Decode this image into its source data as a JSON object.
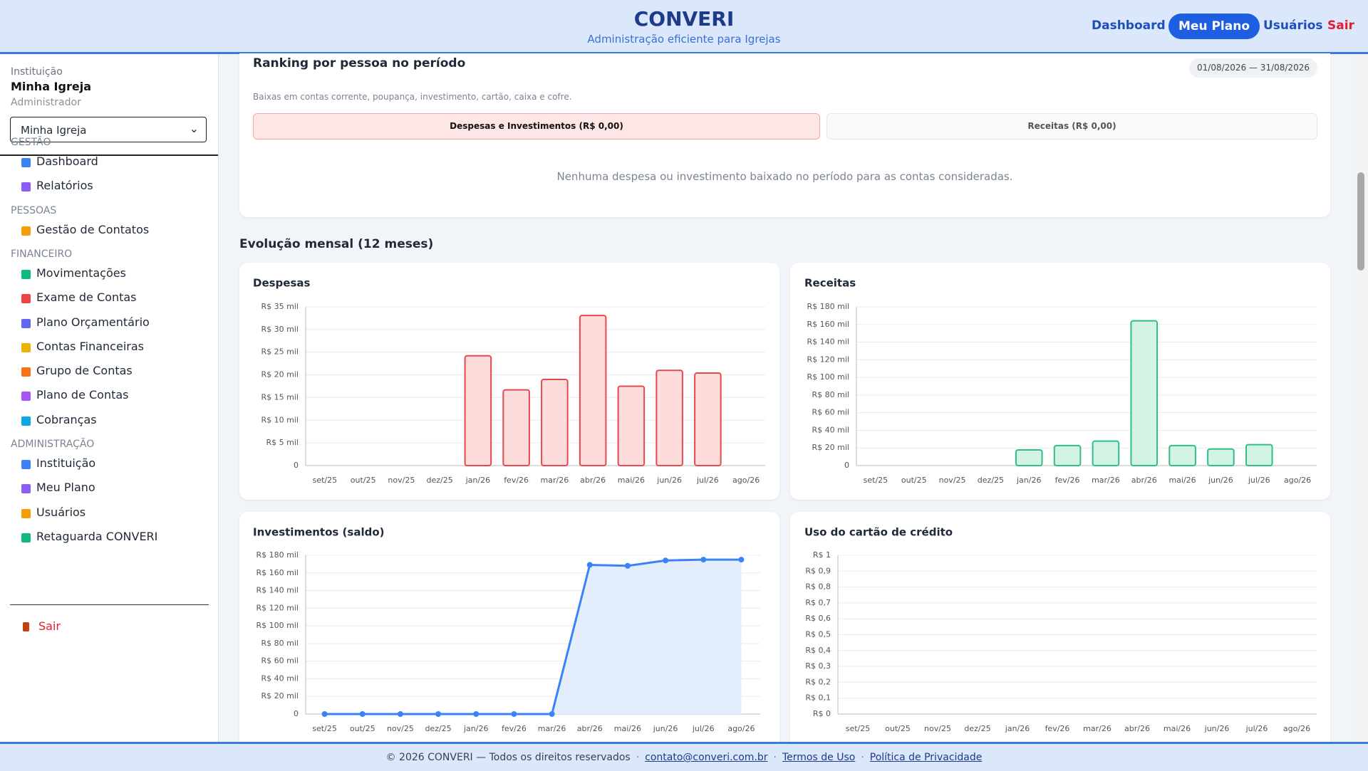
{
  "header": {
    "title": "CONVERI",
    "subtitle": "Administração eficiente para Igrejas",
    "nav": [
      "Dashboard",
      "Meu Plano",
      "Usuários",
      "Sair"
    ]
  },
  "sidebar": {
    "institution_label": "Instituição",
    "institution_name": "Minha Igreja",
    "role": "Administrador",
    "select_value": "Minha Igreja",
    "sections": [
      {
        "title": "GESTÃO",
        "items": [
          "Dashboard",
          "Relatórios"
        ]
      },
      {
        "title": "PESSOAS",
        "items": [
          "Gestão de Contatos"
        ]
      },
      {
        "title": "FINANCEIRO",
        "items": [
          "Movimentações",
          "Exame de Contas",
          "Plano Orçamentário",
          "Contas Financeiras",
          "Grupo de Contas",
          "Plano de Contas",
          "Cobranças"
        ]
      },
      {
        "title": "ADMINISTRAÇÃO",
        "items": [
          "Instituição",
          "Meu Plano",
          "Usuários",
          "Retaguarda CONVERI"
        ]
      }
    ],
    "logout": "Sair"
  },
  "ranking": {
    "title": "Ranking por pessoa no período",
    "period": "01/08/2026 — 31/08/2026",
    "note": "Baixas em contas corrente, poupança, investimento, cartão, caixa e cofre.",
    "tabs": [
      "Despesas e Investimentos (R$ 0,00)",
      "Receitas (R$ 0,00)"
    ],
    "empty": "Nenhuma despesa ou investimento baixado no período para as contas consideradas."
  },
  "section_title": "Evolução mensal (12 meses)",
  "chart_data": [
    {
      "type": "bar",
      "title": "Despesas",
      "categories": [
        "set/25",
        "out/25",
        "nov/25",
        "dez/25",
        "jan/26",
        "fev/26",
        "mar/26",
        "abr/26",
        "mai/26",
        "jun/26",
        "jul/26",
        "ago/26"
      ],
      "values": [
        0,
        0,
        0,
        0,
        24200,
        16700,
        19000,
        33100,
        17500,
        21000,
        20400,
        0
      ],
      "color": "#fddcdc",
      "stroke": "#e5484d",
      "ylim": [
        0,
        35000
      ],
      "yticks": [
        0,
        {
          "value": 5000,
          "label": "R$ 5 mil"
        },
        {
          "value": 10000,
          "label": "R$ 10 mil"
        },
        {
          "value": 15000,
          "label": "R$ 15 mil"
        },
        {
          "value": 20000,
          "label": "R$ 20 mil"
        },
        {
          "value": 25000,
          "label": "R$ 25 mil"
        },
        {
          "value": 30000,
          "label": "R$ 30 mil"
        },
        {
          "value": 35000,
          "label": "R$ 35 mil"
        }
      ],
      "grid": true
    },
    {
      "type": "bar",
      "title": "Receitas",
      "categories": [
        "set/25",
        "out/25",
        "nov/25",
        "dez/25",
        "jan/26",
        "fev/26",
        "mar/26",
        "abr/26",
        "mai/26",
        "jun/26",
        "jul/26",
        "ago/26"
      ],
      "values": [
        0,
        0,
        0,
        0,
        17800,
        22700,
        27700,
        164200,
        22700,
        18800,
        23700,
        0
      ],
      "color": "#d3f3e5",
      "stroke": "#2fbf85",
      "ylim": [
        0,
        180000
      ],
      "yticks": [
        0,
        {
          "value": 20000,
          "label": "R$ 20 mil"
        },
        {
          "value": 40000,
          "label": "R$ 40 mil"
        },
        {
          "value": 60000,
          "label": "R$ 60 mil"
        },
        {
          "value": 80000,
          "label": "R$ 80 mil"
        },
        {
          "value": 100000,
          "label": "R$ 100 mil"
        },
        {
          "value": 120000,
          "label": "R$ 120 mil"
        },
        {
          "value": 140000,
          "label": "R$ 140 mil"
        },
        {
          "value": 160000,
          "label": "R$ 160 mil"
        },
        {
          "value": 180000,
          "label": "R$ 180 mil"
        }
      ],
      "grid": true
    },
    {
      "type": "line",
      "title": "Investimentos (saldo)",
      "categories": [
        "set/25",
        "out/25",
        "nov/25",
        "dez/25",
        "jan/26",
        "fev/26",
        "mar/26",
        "abr/26",
        "mai/26",
        "jun/26",
        "jul/26",
        "ago/26"
      ],
      "values": [
        0,
        0,
        0,
        0,
        0,
        0,
        0,
        169100,
        168100,
        174100,
        175100,
        175100
      ],
      "color": "#3b82f6",
      "fill": "#e3edfc",
      "ylim": [
        0,
        180000
      ],
      "yticks": [
        0,
        {
          "value": 20000,
          "label": "R$ 20 mil"
        },
        {
          "value": 40000,
          "label": "R$ 40 mil"
        },
        {
          "value": 60000,
          "label": "R$ 60 mil"
        },
        {
          "value": 80000,
          "label": "R$ 80 mil"
        },
        {
          "value": 100000,
          "label": "R$ 100 mil"
        },
        {
          "value": 120000,
          "label": "R$ 120 mil"
        },
        {
          "value": 140000,
          "label": "R$ 140 mil"
        },
        {
          "value": 160000,
          "label": "R$ 160 mil"
        },
        {
          "value": 180000,
          "label": "R$ 180 mil"
        }
      ],
      "grid": true
    },
    {
      "type": "bar",
      "title": "Uso do cartão de crédito",
      "categories": [
        "set/25",
        "out/25",
        "nov/25",
        "dez/25",
        "jan/26",
        "fev/26",
        "mar/26",
        "abr/26",
        "mai/26",
        "jun/26",
        "jul/26",
        "ago/26"
      ],
      "values": [
        0,
        0,
        0,
        0,
        0,
        0,
        0,
        0,
        0,
        0,
        0,
        0
      ],
      "color": "#fde7c8",
      "stroke": "#f59e0b",
      "ylim": [
        0,
        1
      ],
      "yticks": [
        {
          "value": 0,
          "label": "R$ 0"
        },
        {
          "value": 0.1,
          "label": "R$ 0,1"
        },
        {
          "value": 0.2,
          "label": "R$ 0,2"
        },
        {
          "value": 0.3,
          "label": "R$ 0,3"
        },
        {
          "value": 0.4,
          "label": "R$ 0,4"
        },
        {
          "value": 0.5,
          "label": "R$ 0,5"
        },
        {
          "value": 0.6,
          "label": "R$ 0,6"
        },
        {
          "value": 0.7,
          "label": "R$ 0,7"
        },
        {
          "value": 0.8,
          "label": "R$ 0,8"
        },
        {
          "value": 0.9,
          "label": "R$ 0,9"
        },
        {
          "value": 1,
          "label": "R$ 1"
        }
      ],
      "grid": true
    }
  ],
  "footer": {
    "copyright": "© 2026 CONVERI — Todos os direitos reservados",
    "separator": "·",
    "email": "contato@converi.com.br",
    "terms": "Termos de Uso",
    "privacy": "Política de Privacidade"
  }
}
